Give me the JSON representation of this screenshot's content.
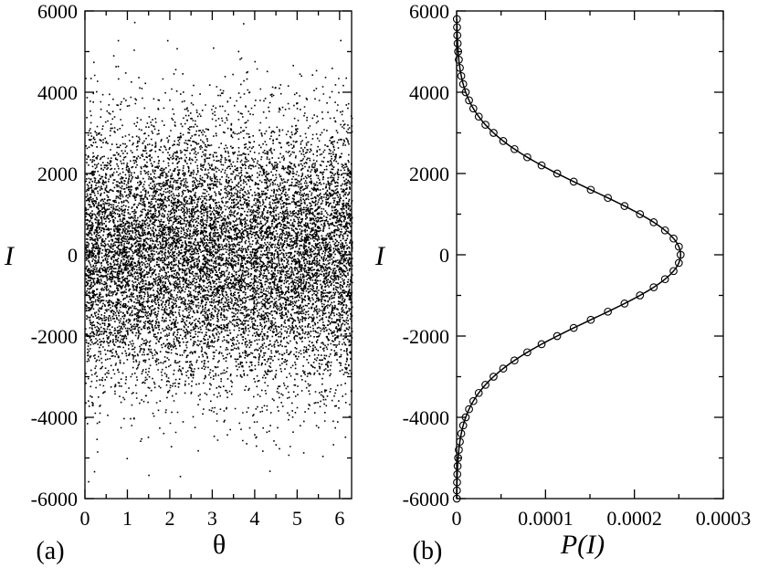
{
  "chart_data": [
    {
      "panel": "(a)",
      "type": "scatter",
      "xlabel": "θ",
      "ylabel": "I",
      "xlim": [
        0,
        6.2832
      ],
      "ylim": [
        -6000,
        6000
      ],
      "xticks": [
        "0",
        "1",
        "2",
        "3",
        "4",
        "5",
        "6"
      ],
      "xtick_values": [
        0,
        1,
        2,
        3,
        4,
        5,
        6
      ],
      "yticks": [
        "6000",
        "4000",
        "2000",
        "0",
        "-2000",
        "-4000",
        "-6000"
      ],
      "ytick_values": [
        6000,
        4000,
        2000,
        0,
        -2000,
        -4000,
        -6000
      ],
      "series": [
        {
          "distribution": "gaussian in I, uniform in θ",
          "I_mean": 0,
          "I_std": 1600,
          "color": "#000000"
        }
      ]
    },
    {
      "panel": "(b)",
      "type": "line",
      "xlabel": "P(I)",
      "ylabel": "I",
      "xlim": [
        0,
        0.0003
      ],
      "ylim": [
        -6000,
        6000
      ],
      "xticks": [
        "0",
        "0.0001",
        "0.0002",
        "0.0003"
      ],
      "xtick_values": [
        0,
        0.0001,
        0.0002,
        0.0003
      ],
      "yticks": [
        "6000",
        "4000",
        "2000",
        "0",
        "-2000",
        "-4000",
        "-6000"
      ],
      "ytick_values": [
        6000,
        4000,
        2000,
        0,
        -2000,
        -4000,
        -6000
      ],
      "series": [
        {
          "style": "solid line with open circle markers",
          "color": "#000000",
          "I": [
            -6000,
            -5600,
            -5200,
            -4800,
            -4400,
            -4000,
            -3600,
            -3200,
            -2800,
            -2400,
            -2000,
            -1600,
            -1200,
            -800,
            -400,
            0,
            400,
            800,
            1200,
            1600,
            2000,
            2400,
            2800,
            3200,
            3600,
            4000,
            4400,
            4800,
            5200,
            5600,
            5800
          ],
          "P": [
            2e-07,
            5e-07,
            1e-06,
            3e-06,
            8e-06,
            1.9e-05,
            3.8e-05,
            6.8e-05,
            9.7e-05,
            0.000128,
            0.000153,
            0.00018,
            0.00021,
            0.000235,
            0.000248,
            0.000252,
            0.000248,
            0.000235,
            0.00021,
            0.00018,
            0.000153,
            0.000128,
            9.7e-05,
            6.8e-05,
            3.8e-05,
            1.9e-05,
            8e-06,
            3e-06,
            1e-06,
            5e-07,
            3e-07
          ]
        }
      ]
    }
  ]
}
